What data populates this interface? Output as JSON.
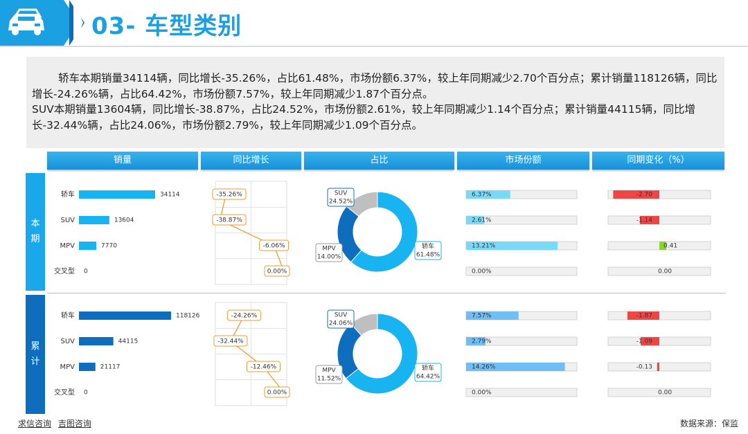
{
  "header": {
    "title": "03- 车型类别"
  },
  "summary": {
    "line1": "轿车本期销量34114辆，同比增长-35.26%，占比61.48%，市场份额6.37%，较上年同期减少2.70个百分点；累计销量118126辆，同比增长-24.26%辆，占比64.42%，市场份额7.57%，较上年同期减少1.87个百分点。",
    "line2": "SUV本期销量13604辆，同比增长-38.87%，占比24.52%，市场份额2.61%，较上年同期减少1.14个百分点；累计销量44115辆，同比增长-32.44%辆，占比24.06%，市场份额2.79%，较上年同期减少1.09个百分点。"
  },
  "columns": [
    "销量",
    "同比增长",
    "占比",
    "市场份额",
    "同期变化（%）"
  ],
  "row_labels": {
    "current": [
      "本",
      "期"
    ],
    "cumulative": [
      "累",
      "计"
    ]
  },
  "footer": {
    "links": [
      "求信咨询",
      "吉图咨询"
    ],
    "source": "数据来源：保监"
  },
  "colors": {
    "current": "#18b4f2",
    "cumulative": "#0f6dbd",
    "share": "#7ad9f7",
    "share_cum": "#6fbef4",
    "neg": "#f04545",
    "pos": "#8ccf3f",
    "suv_slice": "#0f6dbd",
    "mpv_slice": "#bfbfbf"
  },
  "chart_data": [
    {
      "type": "bar",
      "section": "current",
      "title": "销量",
      "categories": [
        "轿车",
        "SUV",
        "MPV",
        "交叉型"
      ],
      "values": [
        34114,
        13604,
        7770,
        0
      ],
      "value_labels": [
        "34114",
        "13604",
        "7770",
        "0"
      ]
    },
    {
      "type": "line",
      "section": "current",
      "title": "同比增长",
      "categories": [
        "轿车",
        "SUV",
        "MPV",
        "交叉型"
      ],
      "values": [
        -35.26,
        -38.87,
        -6.06,
        0.0
      ],
      "value_labels": [
        "-35.26%",
        "-38.87%",
        "-6.06%",
        "0.00%"
      ]
    },
    {
      "type": "pie",
      "section": "current",
      "title": "占比",
      "labels": [
        "轿车",
        "SUV",
        "MPV"
      ],
      "values": [
        61.48,
        24.52,
        14.0
      ],
      "value_labels": [
        "61.48%",
        "24.52%",
        "14.00%"
      ]
    },
    {
      "type": "bar",
      "section": "current",
      "title": "市场份额",
      "categories": [
        "轿车",
        "SUV",
        "MPV",
        "交叉型"
      ],
      "values": [
        6.37,
        2.61,
        13.21,
        0.0
      ],
      "value_labels": [
        "6.37%",
        "2.61%",
        "13.21%",
        "0.00%"
      ],
      "xlim": [
        0,
        16
      ]
    },
    {
      "type": "bar",
      "section": "current",
      "title": "同期变化（%）",
      "categories": [
        "轿车",
        "SUV",
        "MPV",
        "交叉型"
      ],
      "values": [
        -2.7,
        -1.14,
        0.41,
        0.0
      ],
      "value_labels": [
        "-2.70",
        "-1.14",
        "0.41",
        "0.00"
      ],
      "xlim": [
        -3,
        3
      ]
    },
    {
      "type": "bar",
      "section": "cumulative",
      "title": "销量",
      "categories": [
        "轿车",
        "SUV",
        "MPV",
        "交叉型"
      ],
      "values": [
        118126,
        44115,
        21117,
        0
      ],
      "value_labels": [
        "118126",
        "44115",
        "21117",
        "0"
      ]
    },
    {
      "type": "line",
      "section": "cumulative",
      "title": "同比增长",
      "categories": [
        "轿车",
        "SUV",
        "MPV",
        "交叉型"
      ],
      "values": [
        -24.26,
        -32.44,
        -12.46,
        0.0
      ],
      "value_labels": [
        "-24.26%",
        "-32.44%",
        "-12.46%",
        "0.00%"
      ]
    },
    {
      "type": "pie",
      "section": "cumulative",
      "title": "占比",
      "labels": [
        "轿车",
        "SUV",
        "MPV"
      ],
      "values": [
        64.42,
        24.06,
        11.52
      ],
      "value_labels": [
        "64.42%",
        "24.06%",
        "11.52%"
      ]
    },
    {
      "type": "bar",
      "section": "cumulative",
      "title": "市场份额",
      "categories": [
        "轿车",
        "SUV",
        "MPV",
        "交叉型"
      ],
      "values": [
        7.57,
        2.79,
        14.26,
        0.0
      ],
      "value_labels": [
        "7.57%",
        "2.79%",
        "14.26%",
        "0.00%"
      ],
      "xlim": [
        0,
        16
      ]
    },
    {
      "type": "bar",
      "section": "cumulative",
      "title": "同期变化（%）",
      "categories": [
        "轿车",
        "SUV",
        "MPV",
        "交叉型"
      ],
      "values": [
        -1.87,
        -1.09,
        -0.13,
        0.0
      ],
      "value_labels": [
        "-1.87",
        "-1.09",
        "-0.13",
        "0.00"
      ],
      "xlim": [
        -3,
        3
      ]
    }
  ]
}
